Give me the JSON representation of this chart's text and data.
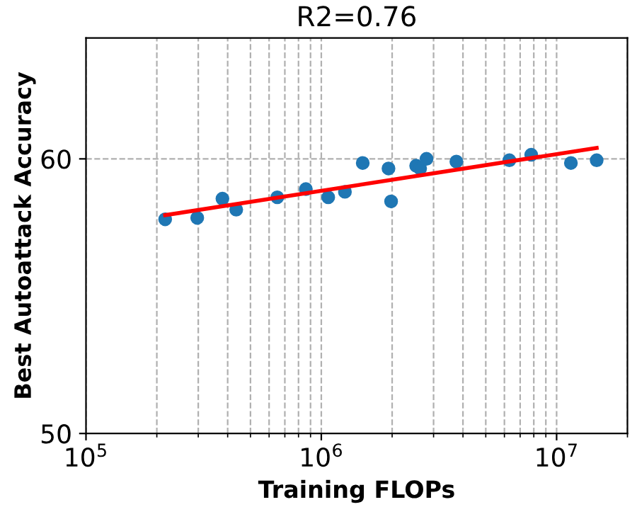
{
  "chart_data": {
    "type": "scatter",
    "title": "R2=0.76",
    "xlabel": "Training FLOPs",
    "ylabel": "Best Autoattack Accuracy",
    "log": "x",
    "grid": true,
    "xlim": [
      100000,
      20000000
    ],
    "ylim": [
      50,
      64.4
    ],
    "xticks": [
      {
        "value": 100000,
        "label": "10$^{5}$"
      },
      {
        "value": 1000000,
        "label": "10$^{6}$"
      },
      {
        "value": 10000000,
        "label": "10$^{7}$"
      }
    ],
    "yticks": [
      50,
      60
    ],
    "series": [
      {
        "marker": "circle",
        "color": "#1f77b4",
        "x": [
          217000,
          297000,
          380000,
          435000,
          650000,
          860000,
          1070000,
          1260000,
          1500000,
          1930000,
          1980000,
          2530000,
          2630000,
          2800000,
          3750000,
          6300000,
          7800000,
          11500000,
          14800000
        ],
        "values": [
          57.8,
          57.85,
          58.55,
          58.15,
          58.6,
          58.9,
          58.6,
          58.8,
          59.85,
          59.65,
          58.45,
          59.75,
          59.65,
          60.0,
          59.9,
          59.95,
          60.15,
          59.85,
          59.95
        ]
      },
      {
        "type": "line",
        "color": "#ff0000",
        "x": [
          217000,
          14800000
        ],
        "values": [
          57.95,
          60.4
        ]
      }
    ]
  }
}
